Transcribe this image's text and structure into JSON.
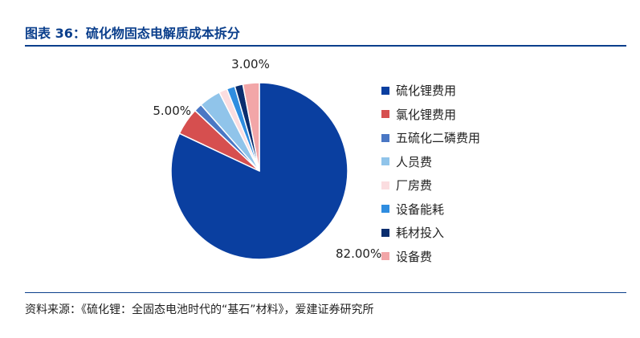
{
  "title": "图表 36：硫化物固态电解质成本拆分",
  "source": "资料来源：《硫化锂：全固态电池时代的“基石”材料》，爱建证券研究所",
  "chart_data": {
    "type": "pie",
    "title": "图表 36：硫化物固态电解质成本拆分",
    "slices": [
      {
        "name": "硫化锂费用",
        "value": 82.0,
        "label": "82.00%",
        "color": "#0a3fa0"
      },
      {
        "name": "氯化锂费用",
        "value": 5.0,
        "label": "5.00%",
        "color": "#d64f4f"
      },
      {
        "name": "五硫化二磷费用",
        "value": 1.5,
        "label": "",
        "color": "#4a77c4"
      },
      {
        "name": "人员费",
        "value": 4.0,
        "label": "",
        "color": "#90c4ea"
      },
      {
        "name": "厂房费",
        "value": 1.5,
        "label": "",
        "color": "#fbdde0"
      },
      {
        "name": "设备能耗",
        "value": 1.5,
        "label": "",
        "color": "#2f8de0"
      },
      {
        "name": "耗材投入",
        "value": 1.5,
        "label": "",
        "color": "#0a2d6e"
      },
      {
        "name": "设备费",
        "value": 3.0,
        "label": "3.00%",
        "color": "#f2a6a8"
      }
    ],
    "legend_position": "right"
  }
}
